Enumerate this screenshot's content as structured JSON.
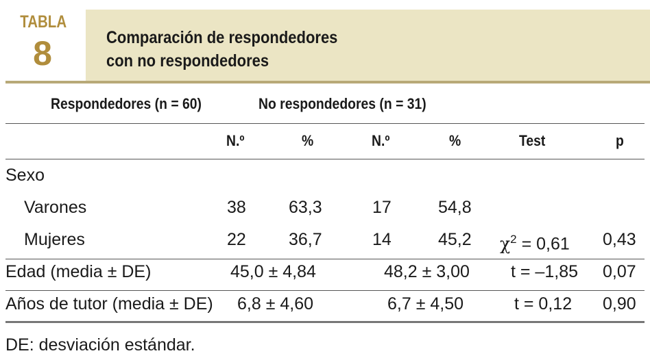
{
  "header": {
    "tabla_label": "TABLA",
    "tabla_number": "8",
    "title_line1": "Comparación de respondedores",
    "title_line2": "con no respondedores"
  },
  "groups": {
    "responders": "Respondedores (n = 60)",
    "non_responders": "No respondedores (n = 31)"
  },
  "columns": {
    "n1": "N.º",
    "pct1": "%",
    "n2": "N.º",
    "pct2": "%",
    "test": "Test",
    "p": "p"
  },
  "rows": {
    "sexo": {
      "label": "Sexo"
    },
    "varones": {
      "label": "Varones",
      "n1": "38",
      "pct1": "63,3",
      "n2": "17",
      "pct2": "54,8"
    },
    "mujeres": {
      "label": "Mujeres",
      "n1": "22",
      "pct1": "36,7",
      "n2": "14",
      "pct2": "45,2",
      "test_symbol": "χ",
      "test_sup": "2",
      "test_rest": " = 0,61",
      "p": "0,43"
    },
    "edad": {
      "label": "Edad (media ± DE)",
      "resp": "45,0 ± 4,84",
      "nonresp": "48,2 ± 3,00",
      "test": "t = –1,85",
      "p": "0,07"
    },
    "tutor": {
      "label": "Años de tutor (media ± DE)",
      "resp": "6,8 ± 4,60",
      "nonresp": "6,7 ± 4,50",
      "test": "t = 0,12",
      "p": "0,90"
    }
  },
  "footnote": "DE: desviación estándar."
}
